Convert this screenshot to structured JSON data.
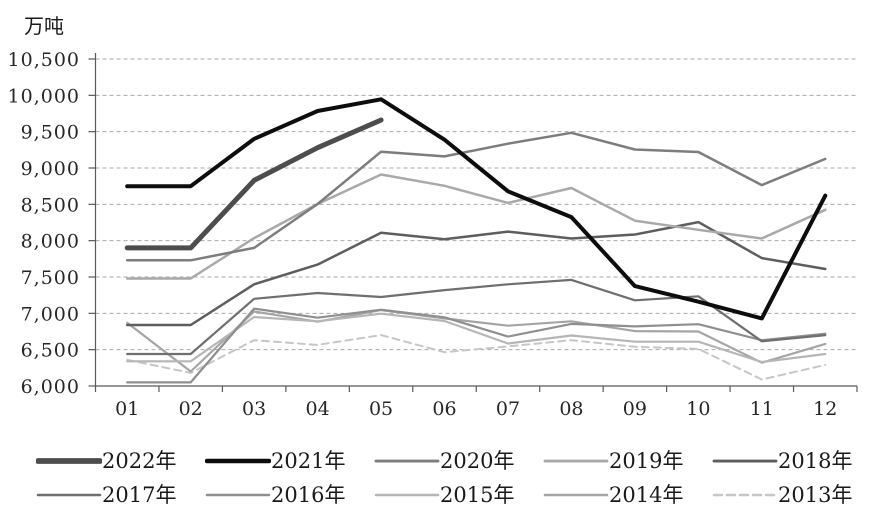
{
  "chart_data": {
    "type": "line",
    "title": "",
    "unit_label": "万吨",
    "x": [
      "01",
      "02",
      "03",
      "04",
      "05",
      "06",
      "07",
      "08",
      "09",
      "10",
      "11",
      "12"
    ],
    "xlabel": "",
    "ylabel": "万吨",
    "ylim": [
      6000,
      10500
    ],
    "ytick_interval": 500,
    "ytick_labels": [
      "6,000",
      "6,500",
      "7,000",
      "7,500",
      "8,000",
      "8,500",
      "9,000",
      "9,500",
      "10,000",
      "10,500"
    ],
    "grid": "horizontal-dashed",
    "legend_position": "bottom",
    "axis_color": "#595959",
    "gridline_color": "#aaaaaa",
    "series": [
      {
        "name": "2022年",
        "color": "#4d4d4d",
        "width": 5,
        "dash": null,
        "values": [
          7900,
          7900,
          8830,
          9280,
          9660,
          null,
          null,
          null,
          null,
          null,
          null,
          null
        ]
      },
      {
        "name": "2021年",
        "color": "#0d0d0d",
        "width": 4,
        "dash": null,
        "values": [
          8750,
          8750,
          9400,
          9785,
          9945,
          9390,
          8680,
          8325,
          7375,
          7160,
          6930,
          8620
        ]
      },
      {
        "name": "2020年",
        "color": "#7d7d7d",
        "width": 2.5,
        "dash": null,
        "values": [
          7730,
          7730,
          7900,
          8505,
          9225,
          9160,
          9335,
          9485,
          9255,
          9220,
          8765,
          9125
        ]
      },
      {
        "name": "2019年",
        "color": "#a9a9a9",
        "width": 2.5,
        "dash": null,
        "values": [
          7480,
          7480,
          8035,
          8505,
          8910,
          8755,
          8520,
          8725,
          8275,
          8150,
          8030,
          8425
        ]
      },
      {
        "name": "2018年",
        "color": "#5e5e5e",
        "width": 2.5,
        "dash": null,
        "values": [
          6840,
          6840,
          7400,
          7670,
          8110,
          8020,
          8125,
          8030,
          8085,
          8255,
          7760,
          7610
        ]
      },
      {
        "name": "2017年",
        "color": "#6f6f6f",
        "width": 2.2,
        "dash": null,
        "values": [
          6440,
          6440,
          7200,
          7280,
          7225,
          7320,
          7400,
          7460,
          7180,
          7235,
          6615,
          6700
        ]
      },
      {
        "name": "2016年",
        "color": "#8f8f8f",
        "width": 2.2,
        "dash": null,
        "values": [
          6050,
          6050,
          7065,
          6940,
          7050,
          6945,
          6680,
          6855,
          6820,
          6850,
          6630,
          6720
        ]
      },
      {
        "name": "2015年",
        "color": "#b6b6b6",
        "width": 2.2,
        "dash": null,
        "values": [
          6340,
          6340,
          6950,
          6890,
          6995,
          6895,
          6585,
          6695,
          6610,
          6610,
          6330,
          6440
        ]
      },
      {
        "name": "2014年",
        "color": "#a5a5a5",
        "width": 2.2,
        "dash": null,
        "values": [
          6870,
          6200,
          7025,
          6885,
          7045,
          6930,
          6830,
          6890,
          6755,
          6750,
          6320,
          6580
        ]
      },
      {
        "name": "2013年",
        "color": "#c6c6c6",
        "width": 2,
        "dash": "7 5",
        "values": [
          6360,
          6180,
          6630,
          6565,
          6700,
          6465,
          6545,
          6630,
          6540,
          6510,
          6090,
          6290
        ]
      }
    ]
  }
}
